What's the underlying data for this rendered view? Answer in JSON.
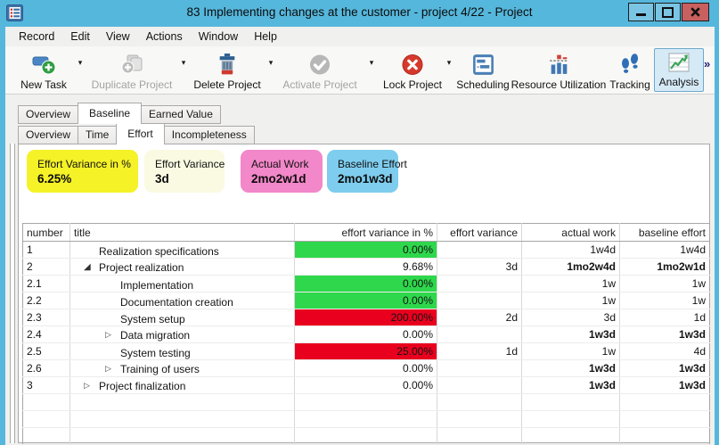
{
  "window": {
    "title": "83 Implementing changes at the customer - project 4/22  - Project"
  },
  "menu": {
    "items": [
      "Record",
      "Edit",
      "View",
      "Actions",
      "Window",
      "Help"
    ]
  },
  "toolbar": {
    "buttons": [
      {
        "label": "New Task",
        "disabled": false,
        "has_dropdown": true
      },
      {
        "label": "Duplicate Project",
        "disabled": true,
        "has_dropdown": true
      },
      {
        "label": "Delete Project",
        "disabled": false,
        "has_dropdown": true
      },
      {
        "label": "Activate Project",
        "disabled": true,
        "has_dropdown": true
      },
      {
        "label": "Lock Project",
        "disabled": false,
        "has_dropdown": true
      },
      {
        "label": "Scheduling",
        "disabled": false,
        "has_dropdown": false
      },
      {
        "label": "Resource Utilization",
        "disabled": false,
        "has_dropdown": false
      },
      {
        "label": "Tracking",
        "disabled": false,
        "has_dropdown": false
      },
      {
        "label": "Analysis",
        "disabled": false,
        "selected": true,
        "has_dropdown": false
      }
    ],
    "overflow": "»"
  },
  "tabs": {
    "level1": [
      {
        "label": "Overview",
        "active": false
      },
      {
        "label": "Baseline",
        "active": true
      },
      {
        "label": "Earned Value",
        "active": false
      }
    ],
    "level2": [
      {
        "label": "Overview",
        "active": false
      },
      {
        "label": "Time",
        "active": false
      },
      {
        "label": "Effort",
        "active": true
      },
      {
        "label": "Incompleteness",
        "active": false
      }
    ]
  },
  "cards": [
    {
      "label": "Effort Variance in %",
      "value": "6.25%",
      "color": "#f5f228"
    },
    {
      "label": "Effort Variance",
      "value": "3d",
      "color": "#fafae2"
    },
    {
      "label": "Actual Work",
      "value": "2mo2w1d",
      "color": "#f287c9"
    },
    {
      "label": "Baseline Effort",
      "value": "2mo1w3d",
      "color": "#7ecdee"
    }
  ],
  "table": {
    "columns": [
      "number",
      "title",
      "effort variance in %",
      "effort variance",
      "actual work",
      "baseline effort"
    ],
    "rows": [
      {
        "number": "1",
        "title": "Realization specifications",
        "level": 1,
        "expander": "none",
        "variance_pct": "0.00%",
        "variance_fill": "green",
        "variance": "",
        "actual": "1w4d",
        "baseline": "1w4d",
        "bold": false
      },
      {
        "number": "2",
        "title": "Project realization",
        "level": 1,
        "expander": "expanded",
        "variance_pct": "9.68%",
        "variance_fill": "none",
        "variance": "3d",
        "actual": "1mo2w4d",
        "baseline": "1mo2w1d",
        "bold": true
      },
      {
        "number": "2.1",
        "title": "Implementation",
        "level": 2,
        "expander": "none",
        "variance_pct": "0.00%",
        "variance_fill": "green",
        "variance": "",
        "actual": "1w",
        "baseline": "1w",
        "bold": false
      },
      {
        "number": "2.2",
        "title": "Documentation creation",
        "level": 2,
        "expander": "none",
        "variance_pct": "0.00%",
        "variance_fill": "green",
        "variance": "",
        "actual": "1w",
        "baseline": "1w",
        "bold": false
      },
      {
        "number": "2.3",
        "title": "System setup",
        "level": 2,
        "expander": "none",
        "variance_pct": "200.00%",
        "variance_fill": "red",
        "variance": "2d",
        "actual": "3d",
        "baseline": "1d",
        "bold": false
      },
      {
        "number": "2.4",
        "title": "Data migration",
        "level": 2,
        "expander": "collapsed",
        "variance_pct": "0.00%",
        "variance_fill": "none",
        "variance": "",
        "actual": "1w3d",
        "baseline": "1w3d",
        "bold": true
      },
      {
        "number": "2.5",
        "title": "System testing",
        "level": 2,
        "expander": "none",
        "variance_pct": "25.00%",
        "variance_fill": "red",
        "variance": "1d",
        "actual": "1w",
        "baseline": "4d",
        "bold": false
      },
      {
        "number": "2.6",
        "title": "Training of users",
        "level": 2,
        "expander": "collapsed",
        "variance_pct": "0.00%",
        "variance_fill": "none",
        "variance": "",
        "actual": "1w3d",
        "baseline": "1w3d",
        "bold": true
      },
      {
        "number": "3",
        "title": "Project finalization",
        "level": 1,
        "expander": "collapsed",
        "variance_pct": "0.00%",
        "variance_fill": "none",
        "variance": "",
        "actual": "1w3d",
        "baseline": "1w3d",
        "bold": true
      },
      {
        "number": "",
        "title": "",
        "level": 1,
        "expander": "none",
        "variance_pct": "",
        "variance_fill": "none",
        "variance": "",
        "actual": "",
        "baseline": "",
        "bold": false
      },
      {
        "number": "",
        "title": "",
        "level": 1,
        "expander": "none",
        "variance_pct": "",
        "variance_fill": "none",
        "variance": "",
        "actual": "",
        "baseline": "",
        "bold": false
      },
      {
        "number": "",
        "title": "",
        "level": 1,
        "expander": "none",
        "variance_pct": "",
        "variance_fill": "none",
        "variance": "",
        "actual": "",
        "baseline": "",
        "bold": false
      }
    ]
  },
  "colors": {
    "accent": "#56b7dc",
    "green": "#2ed74b",
    "red": "#e9001e"
  }
}
